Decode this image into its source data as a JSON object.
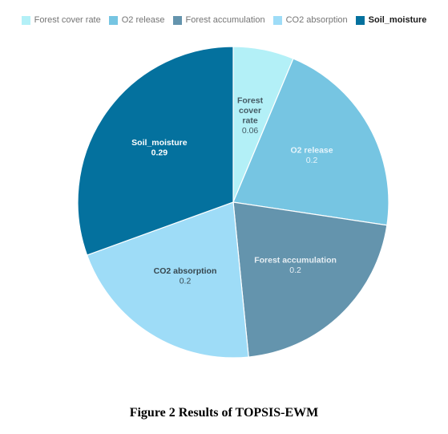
{
  "chart_data": {
    "type": "pie",
    "legend_position": "top",
    "slices": [
      {
        "label": "Forest cover rate",
        "value": 0.06,
        "value_text": "0.06",
        "label_lines": [
          "Forest",
          "cover",
          "rate"
        ],
        "color": "#b3f0f7",
        "text_color": "#455a64"
      },
      {
        "label": "O2 release",
        "value": 0.2,
        "value_text": "0.2",
        "label_lines": [
          "O2 release"
        ],
        "color": "#76c5e2",
        "text_color": "#e6f4fb"
      },
      {
        "label": "Forest accumulation",
        "value": 0.2,
        "value_text": "0.2",
        "label_lines": [
          "Forest accumulation"
        ],
        "color": "#6494ad",
        "text_color": "#e6eef3"
      },
      {
        "label": "CO2 absorption",
        "value": 0.2,
        "value_text": "0.2",
        "label_lines": [
          "CO2 absorption"
        ],
        "color": "#9edcf7",
        "text_color": "#37474f"
      },
      {
        "label": "Soil_moisture",
        "value": 0.29,
        "value_text": "0.29",
        "label_lines": [
          "Soil_moisture"
        ],
        "color": "#04719e",
        "text_color": "#ffffff"
      }
    ],
    "highlighted": "Soil_moisture"
  },
  "caption": "Figure 2 Results of TOPSIS-EWM"
}
